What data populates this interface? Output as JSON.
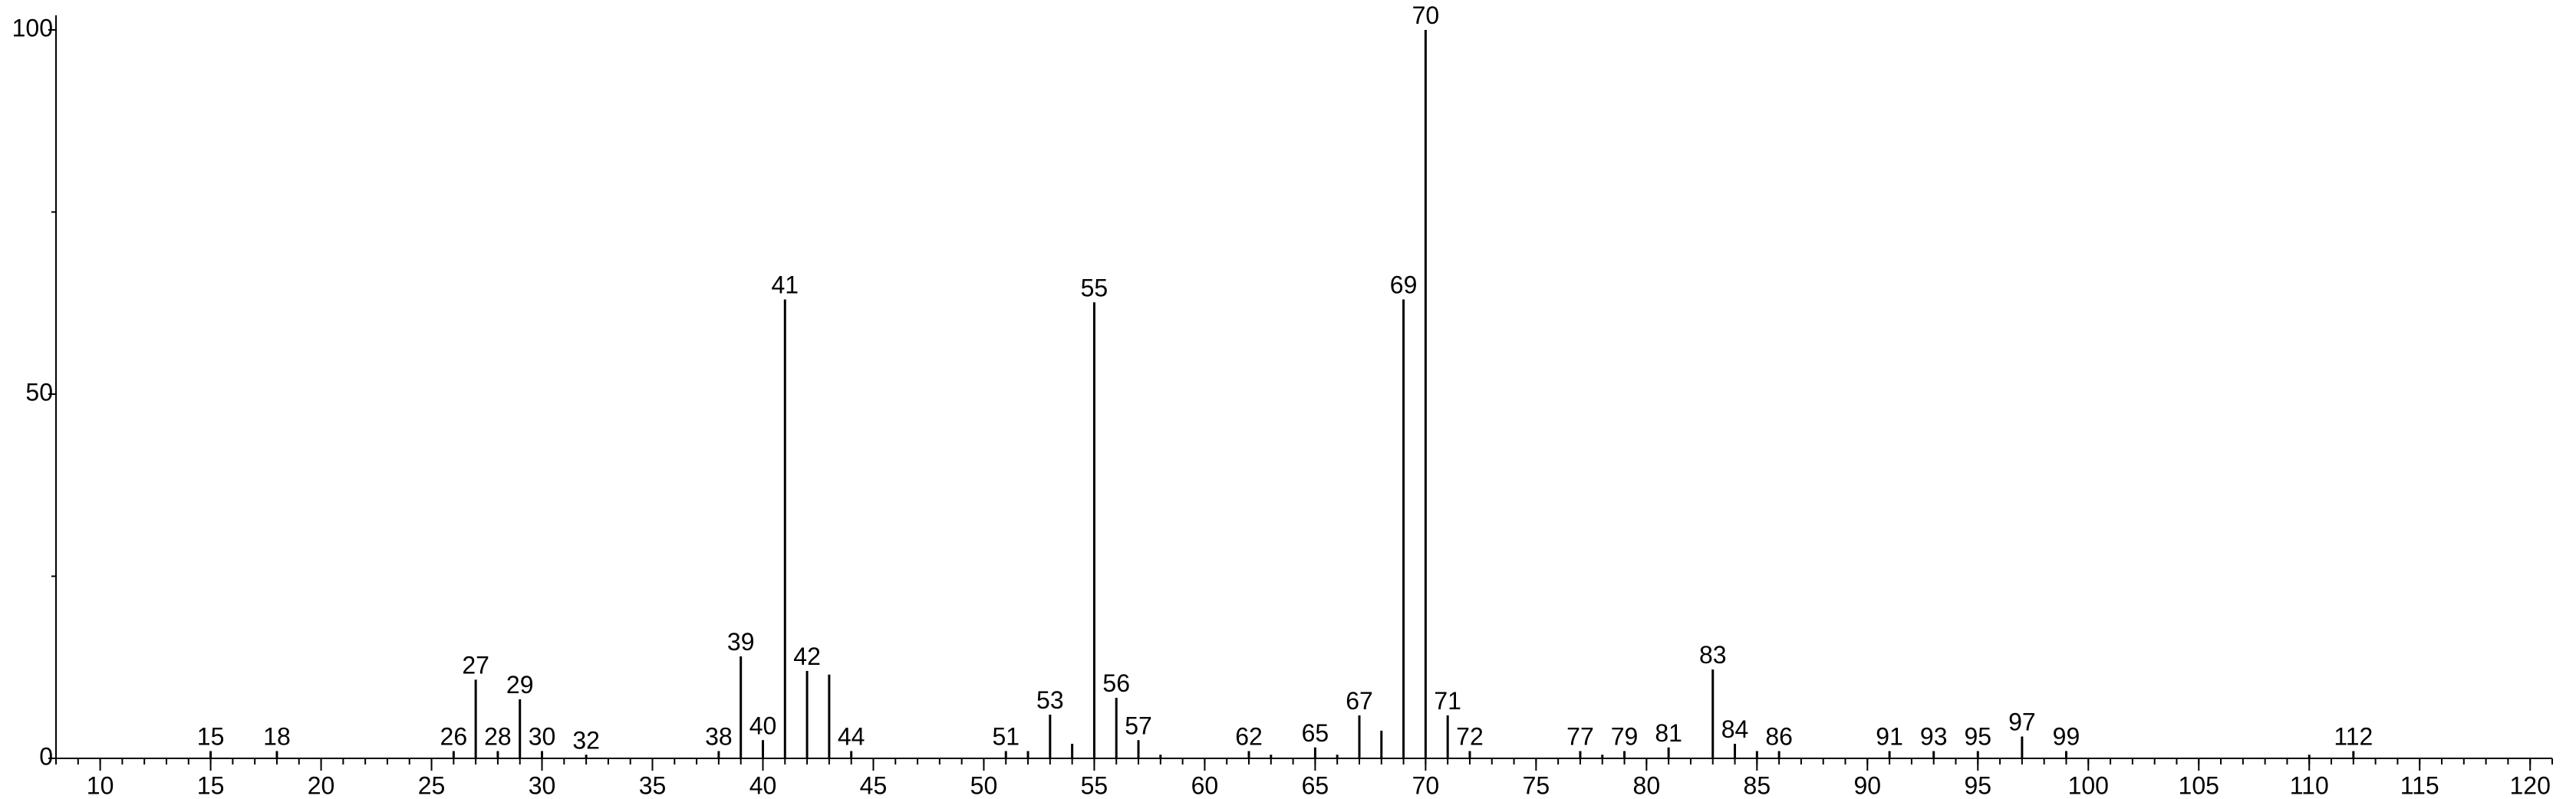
{
  "chart_data": {
    "type": "stem",
    "color": "#000000",
    "x": [
      15,
      18,
      26,
      27,
      28,
      29,
      30,
      32,
      38,
      39,
      40,
      41,
      42,
      43,
      44,
      51,
      52,
      53,
      54,
      55,
      56,
      57,
      58,
      62,
      63,
      65,
      66,
      67,
      68,
      69,
      70,
      71,
      72,
      77,
      78,
      79,
      81,
      83,
      84,
      85,
      86,
      91,
      93,
      95,
      97,
      99,
      110,
      112
    ],
    "values": [
      1,
      1,
      1,
      10.8,
      1,
      8.1,
      1,
      0.5,
      1,
      14,
      2.5,
      63,
      12,
      11.5,
      1,
      1,
      1,
      6,
      2,
      62.6,
      8.3,
      2.5,
      0.5,
      1,
      0.5,
      1.5,
      0.5,
      5.9,
      3.8,
      63,
      100,
      5.9,
      1,
      1,
      0.5,
      1,
      1.5,
      12.2,
      2,
      1,
      1,
      1,
      1,
      1,
      3,
      1,
      0.5,
      1
    ],
    "peak_labels": [
      15,
      18,
      26,
      27,
      28,
      29,
      30,
      32,
      38,
      39,
      40,
      41,
      42,
      null,
      44,
      51,
      null,
      53,
      null,
      55,
      56,
      57,
      null,
      62,
      null,
      65,
      null,
      67,
      null,
      69,
      70,
      71,
      72,
      77,
      null,
      79,
      81,
      83,
      84,
      null,
      86,
      91,
      93,
      95,
      97,
      99,
      null,
      112
    ],
    "xlim": [
      8,
      121
    ],
    "xticks": [
      10,
      15,
      20,
      25,
      30,
      35,
      40,
      45,
      50,
      55,
      60,
      65,
      70,
      75,
      80,
      85,
      90,
      95,
      100,
      105,
      110,
      115,
      120
    ],
    "xticks_minor_step": 1,
    "ylim": [
      0,
      102
    ],
    "yticks": [
      0,
      50,
      100
    ],
    "yticks_minor": [
      25,
      75
    ]
  }
}
